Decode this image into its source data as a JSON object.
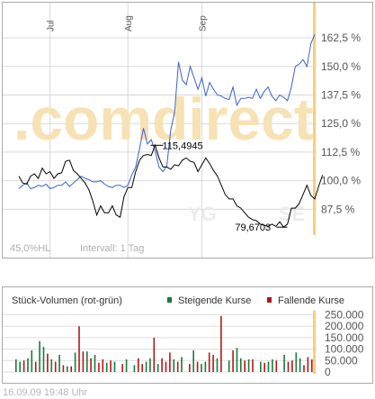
{
  "price_chart": {
    "months": [
      "Jul",
      "Aug",
      "Sep"
    ],
    "yticks": [
      "162,5 %",
      "150,0 %",
      "137,5 %",
      "125,0 %",
      "112,5 %",
      "100,0 %",
      "87,5 %"
    ],
    "max_label": "115,4945",
    "min_label": "79,6703",
    "watermark": ".comdirect",
    "watermark_sub": "YG",
    "watermark_sub2": "SE",
    "range_label": "45,0%HL",
    "interval_label": "Intervall: 1 Tag",
    "colors": {
      "blue_line": "#3a62c8",
      "black_line": "#000000",
      "grid": "#d8d8d8",
      "highlight": "#f5d07a"
    }
  },
  "volume_chart": {
    "title": "Stück-Volumen (rot-grün)",
    "legend_up": "Steigende Kurse",
    "legend_down": "Fallende Kurse",
    "yticks": [
      "250.000",
      "200.000",
      "150.000",
      "100.000",
      "50.000",
      "0"
    ],
    "colors": {
      "up": "#1a7a3a",
      "down": "#b21818"
    }
  },
  "timestamp": "16.09.09   19:48 Uhr",
  "chart_data": [
    {
      "type": "line",
      "title": "",
      "xlabel": "",
      "ylabel": "",
      "x_ticks": [
        "Jul",
        "Aug",
        "Sep"
      ],
      "ylim": [
        77,
        170
      ],
      "y_ticks": [
        87.5,
        100.0,
        112.5,
        125.0,
        137.5,
        150.0,
        162.5
      ],
      "grid": true,
      "series": [
        {
          "name": "",
          "values": [
            96.5,
            98,
            99,
            96.5,
            97,
            98,
            97.5,
            98.5,
            96.5,
            97,
            98,
            98,
            99.5,
            97.5,
            99,
            100.5,
            102,
            101,
            100.5,
            99.5,
            99.5,
            100,
            98.5,
            97.5,
            97,
            98,
            98,
            97,
            98,
            102.5,
            106,
            114,
            123,
            116,
            118,
            113,
            106,
            104,
            106.5,
            122,
            130,
            152,
            144,
            142,
            150,
            145,
            140,
            145,
            137,
            143,
            140,
            137.5,
            137,
            136,
            135.5,
            141,
            133,
            136,
            136,
            136.5,
            136,
            140,
            136,
            139,
            141,
            137,
            135,
            137.5,
            136.5,
            135,
            141,
            150,
            151,
            153,
            150,
            160,
            164
          ]
        },
        {
          "name": "",
          "values": [
            102,
            99,
            98.5,
            102,
            103,
            101,
            105.5,
            103,
            104,
            101,
            103,
            103.5,
            108.5,
            109,
            104.5,
            103,
            101,
            99,
            96,
            91,
            85,
            89,
            86,
            86,
            89,
            85,
            84,
            93,
            97,
            97,
            104,
            109,
            111,
            111.5,
            111,
            115.5,
            110,
            106,
            106,
            105,
            107,
            106.5,
            109,
            110,
            108.5,
            108,
            104,
            107,
            110,
            107.5,
            104.5,
            102,
            98,
            94,
            92,
            92,
            89,
            88,
            86,
            84,
            83,
            82.5,
            81,
            80.5,
            80,
            81,
            80,
            82,
            79.67,
            81,
            88,
            88,
            90,
            94,
            98,
            93.5,
            92,
            97.5,
            102.5
          ]
        }
      ],
      "annotations": [
        "115,4945",
        "79,6703"
      ]
    },
    {
      "type": "bar",
      "title": "Stück-Volumen (rot-grün)",
      "xlabel": "",
      "ylabel": "",
      "ylim": [
        0,
        260000
      ],
      "y_ticks": [
        0,
        50000,
        100000,
        150000,
        200000,
        250000
      ],
      "legend": "top",
      "series": [
        {
          "name": "Steigende Kurse",
          "values": [
            55000,
            45000,
            0,
            60000,
            95000,
            0,
            135000,
            110000,
            0,
            55000,
            0,
            75000,
            0,
            25000,
            0,
            85000,
            0,
            0,
            90000,
            0,
            75000,
            0,
            0,
            40000,
            0,
            45000,
            0,
            0,
            55000,
            0,
            30000,
            0,
            0,
            45000,
            60000,
            0,
            35000,
            0,
            0,
            0,
            55000,
            0,
            65000,
            0,
            0,
            95000,
            0,
            35000,
            45000,
            0,
            0,
            60000,
            0,
            0,
            50000,
            0,
            105000,
            60000,
            0,
            55000,
            0,
            0,
            45000,
            0,
            45000,
            55000,
            0,
            0,
            75000,
            0,
            0,
            85000,
            60000,
            0,
            0,
            0
          ]
        },
        {
          "name": "Fallende Kurse",
          "values": [
            0,
            0,
            50000,
            0,
            0,
            45000,
            0,
            0,
            80000,
            0,
            45000,
            0,
            30000,
            0,
            25000,
            0,
            200000,
            90000,
            0,
            60000,
            0,
            40000,
            55000,
            0,
            50000,
            0,
            0,
            35000,
            0,
            0,
            0,
            60000,
            35000,
            0,
            0,
            150000,
            0,
            60000,
            45000,
            85000,
            0,
            45000,
            0,
            0,
            35000,
            0,
            45000,
            0,
            0,
            85000,
            75000,
            0,
            245000,
            0,
            0,
            95000,
            0,
            0,
            50000,
            0,
            55000,
            0,
            0,
            40000,
            0,
            0,
            50000,
            0,
            0,
            45000,
            50000,
            0,
            0,
            30000,
            65000,
            55000
          ]
        }
      ]
    }
  ]
}
